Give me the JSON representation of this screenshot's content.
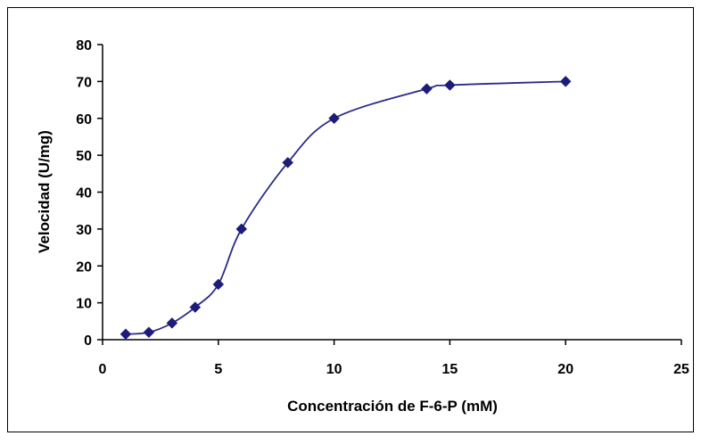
{
  "chart_data": {
    "type": "line",
    "xlabel": "Concentración de F-6-P (mM)",
    "ylabel": "Velocidad (U/mg)",
    "xlim": [
      0,
      25
    ],
    "ylim": [
      0,
      80
    ],
    "x_ticks": [
      0,
      5,
      10,
      15,
      20,
      25
    ],
    "y_ticks": [
      0,
      10,
      20,
      30,
      40,
      50,
      60,
      70,
      80
    ],
    "grid": false,
    "legend": "none",
    "line_color": "#2b2b8a",
    "marker_color": "#1c1c7a",
    "marker": "diamond",
    "smooth": true,
    "series": [
      {
        "x": [
          1,
          2,
          3,
          4,
          5,
          6,
          8,
          10,
          14,
          15,
          20
        ],
        "y": [
          1.5,
          2,
          4.5,
          8.8,
          15,
          30,
          48,
          60,
          68,
          69,
          70
        ]
      }
    ]
  }
}
